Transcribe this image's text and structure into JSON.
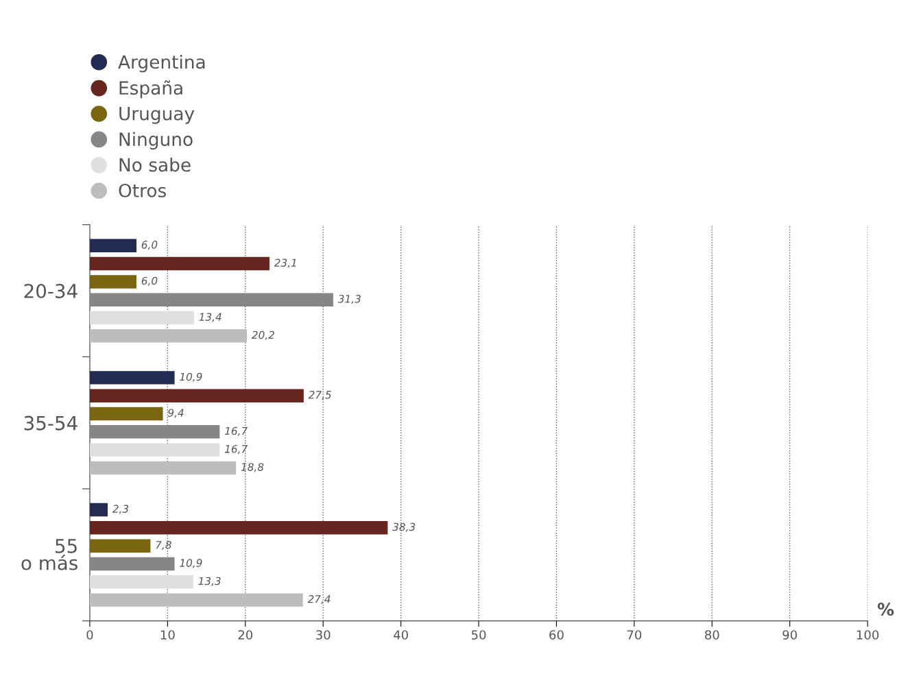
{
  "chart_data": {
    "type": "bar",
    "orientation": "horizontal",
    "xlabel": "%",
    "categories": [
      "20-34",
      "35-54",
      "55\no más"
    ],
    "series": [
      {
        "name": "Argentina",
        "color": "#232b55",
        "values": [
          6.0,
          10.9,
          2.3
        ],
        "value_labels": [
          "6,0",
          "10,9",
          "2,3"
        ]
      },
      {
        "name": "España",
        "color": "#662620",
        "values": [
          23.1,
          27.5,
          38.3
        ],
        "value_labels": [
          "23,1",
          "27,5",
          "38,3"
        ]
      },
      {
        "name": "Uruguay",
        "color": "#7a6510",
        "values": [
          6.0,
          9.4,
          7.8
        ],
        "value_labels": [
          "6,0",
          "9,4",
          "7,8"
        ]
      },
      {
        "name": "Ninguno",
        "color": "#868686",
        "values": [
          31.3,
          16.7,
          10.9
        ],
        "value_labels": [
          "31,3",
          "16,7",
          "10,9"
        ]
      },
      {
        "name": "No sabe",
        "color": "#e0e0e0",
        "values": [
          13.4,
          16.7,
          13.3
        ],
        "value_labels": [
          "13,4",
          "16,7",
          "13,3"
        ]
      },
      {
        "name": "Otros",
        "color": "#bdbdbd",
        "values": [
          20.2,
          18.8,
          27.4
        ],
        "value_labels": [
          "20,2",
          "18,8",
          "27,4"
        ]
      }
    ],
    "xlim": [
      0,
      100
    ],
    "xticks": [
      0,
      10,
      20,
      30,
      40,
      50,
      60,
      70,
      80,
      90,
      100
    ],
    "grid": "x",
    "legend": "top left",
    "marker": "circle"
  }
}
